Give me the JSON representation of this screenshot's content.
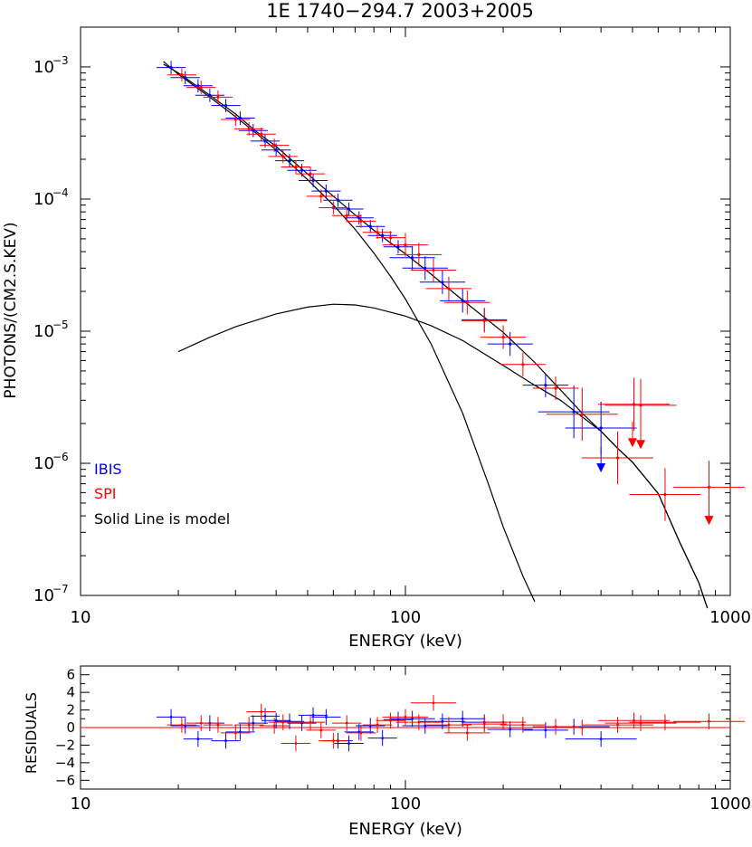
{
  "chart_data": [
    {
      "type": "scatter",
      "title": "1E 1740−294.7 2003+2005",
      "xlabel": "ENERGY (keV)",
      "ylabel": "PHOTONS/(CM2.S.KEV)",
      "xscale": "log",
      "yscale": "log",
      "xlim": [
        10,
        1000
      ],
      "ylim": [
        1e-07,
        0.002
      ],
      "x_ticks": [
        10,
        100,
        1000
      ],
      "x_tick_labels": [
        "10",
        "100",
        "1000"
      ],
      "y_ticks": [
        1e-07,
        1e-06,
        1e-05,
        0.0001,
        0.001
      ],
      "y_tick_labels": [
        "10",
        "10",
        "10",
        "10",
        "10"
      ],
      "y_tick_exponents": [
        "−7",
        "−6",
        "−5",
        "−4",
        "−3"
      ],
      "grid": false,
      "legend_placement": "bottom-left",
      "legend": [
        {
          "label": "IBIS",
          "color": "#0000ff"
        },
        {
          "label": "SPI",
          "color": "#ff0000"
        },
        {
          "label": "Solid Line is model",
          "color": "#000000"
        }
      ],
      "series": [
        {
          "name": "IBIS",
          "color": "#0000ff",
          "points": [
            [
              19,
              0.00099
            ],
            [
              21,
              0.00083
            ],
            [
              23,
              0.00072
            ],
            [
              25,
              0.00061
            ],
            [
              28,
              0.00051
            ],
            [
              31,
              0.00041
            ],
            [
              34,
              0.00033
            ],
            [
              37,
              0.000275
            ],
            [
              40,
              0.000235
            ],
            [
              44,
              0.000195
            ],
            [
              48,
              0.000165
            ],
            [
              52,
              0.000138
            ],
            [
              57,
              0.000115
            ],
            [
              62,
              9.8e-05
            ],
            [
              67,
              8.4e-05
            ],
            [
              72,
              7.2e-05
            ],
            [
              78,
              6.2e-05
            ],
            [
              85,
              5.3e-05
            ],
            [
              95,
              4.35e-05
            ],
            [
              105,
              3.6e-05
            ],
            [
              115,
              3e-05
            ],
            [
              130,
              2.35e-05
            ],
            [
              150,
              1.7e-05
            ],
            [
              175,
              1.22e-05
            ],
            [
              210,
              8e-06
            ],
            [
              270,
              3.9e-06
            ],
            [
              330,
              2.45e-06
            ],
            [
              400,
              1.85e-06
            ]
          ],
          "upper_limits": [
            [
              400,
              1e-06
            ]
          ]
        },
        {
          "name": "SPI",
          "color": "#ff0000",
          "points": [
            [
              20.5,
              0.00087
            ],
            [
              23.5,
              0.0007
            ],
            [
              26.5,
              0.00059
            ],
            [
              30,
              0.0004
            ],
            [
              33,
              0.00034
            ],
            [
              36,
              0.00031
            ],
            [
              39.5,
              0.000255
            ],
            [
              42,
              0.00021
            ],
            [
              46,
              0.000175
            ],
            [
              51,
              0.000155
            ],
            [
              55,
              0.000105
            ],
            [
              60,
              8.6e-05
            ],
            [
              66,
              7.5e-05
            ],
            [
              73,
              6.8e-05
            ],
            [
              82,
              5.6e-05
            ],
            [
              90,
              5.1e-05
            ],
            [
              100,
              4.5e-05
            ],
            [
              110,
              3.8e-05
            ],
            [
              122,
              2.9e-05
            ],
            [
              136,
              2.1e-05
            ],
            [
              155,
              1.65e-05
            ],
            [
              175,
              1.2e-05
            ],
            [
              200,
              9e-06
            ],
            [
              230,
              5.6e-06
            ],
            [
              290,
              3.7e-06
            ],
            [
              350,
              2.35e-06
            ],
            [
              450,
              1.1e-06
            ],
            [
              505,
              2.8e-06
            ],
            [
              530,
              2.75e-06
            ],
            [
              630,
              5.8e-07
            ],
            [
              860,
              6.6e-07
            ]
          ],
          "upper_limits": [
            [
              500,
              1.55e-06
            ],
            [
              530,
              1.5e-06
            ],
            [
              860,
              4e-07
            ]
          ]
        }
      ],
      "model_curves": [
        {
          "name": "total",
          "color": "#000000",
          "points": [
            [
              18,
              0.00105
            ],
            [
              20,
              0.0009
            ],
            [
              25,
              0.00061
            ],
            [
              30,
              0.00044
            ],
            [
              35,
              0.00032
            ],
            [
              40,
              0.00025
            ],
            [
              50,
              0.000155
            ],
            [
              60,
              0.000105
            ],
            [
              70,
              7.6e-05
            ],
            [
              80,
              5.8e-05
            ],
            [
              90,
              4.65e-05
            ],
            [
              100,
              3.85e-05
            ],
            [
              120,
              2.7e-05
            ],
            [
              150,
              1.72e-05
            ],
            [
              200,
              9.8e-06
            ],
            [
              250,
              5.8e-06
            ],
            [
              300,
              3.6e-06
            ],
            [
              350,
              2.4e-06
            ],
            [
              400,
              1.75e-06
            ],
            [
              450,
              1.3e-06
            ],
            [
              500,
              1.02e-06
            ],
            [
              600,
              5.9e-07
            ],
            [
              700,
              2.5e-07
            ],
            [
              800,
              1.25e-07
            ],
            [
              850,
              8e-08
            ]
          ]
        },
        {
          "name": "thermal component",
          "color": "#000000",
          "points": [
            [
              18,
              0.0011
            ],
            [
              20,
              0.00088
            ],
            [
              25,
              0.00059
            ],
            [
              30,
              0.00042
            ],
            [
              35,
              0.00031
            ],
            [
              40,
              0.000235
            ],
            [
              50,
              0.00014
            ],
            [
              60,
              9e-05
            ],
            [
              70,
              5.9e-05
            ],
            [
              80,
              3.9e-05
            ],
            [
              90,
              2.6e-05
            ],
            [
              100,
              1.75e-05
            ],
            [
              120,
              8e-06
            ],
            [
              150,
              2.4e-06
            ],
            [
              180,
              7e-07
            ],
            [
              200,
              3.3e-07
            ],
            [
              230,
              1.4e-07
            ],
            [
              250,
              9e-08
            ]
          ]
        },
        {
          "name": "comptonization component",
          "color": "#000000",
          "points": [
            [
              20,
              7e-06
            ],
            [
              25,
              9e-06
            ],
            [
              30,
              1.08e-05
            ],
            [
              40,
              1.35e-05
            ],
            [
              50,
              1.52e-05
            ],
            [
              60,
              1.6e-05
            ],
            [
              70,
              1.58e-05
            ],
            [
              80,
              1.5e-05
            ],
            [
              100,
              1.3e-05
            ],
            [
              120,
              1.1e-05
            ],
            [
              150,
              8.5e-06
            ],
            [
              200,
              5.5e-06
            ],
            [
              250,
              3.9e-06
            ],
            [
              300,
              3e-06
            ],
            [
              350,
              2.25e-06
            ],
            [
              400,
              1.75e-06
            ],
            [
              450,
              1.3e-06
            ],
            [
              500,
              1.02e-06
            ],
            [
              600,
              5.9e-07
            ],
            [
              700,
              2.5e-07
            ],
            [
              800,
              1.25e-07
            ],
            [
              850,
              8e-08
            ]
          ]
        }
      ]
    },
    {
      "type": "scatter",
      "xlabel": "ENERGY (keV)",
      "ylabel": "RESIDUALS",
      "xscale": "log",
      "xlim": [
        10,
        1000
      ],
      "ylim": [
        -7,
        7
      ],
      "x_ticks": [
        10,
        100,
        1000
      ],
      "x_tick_labels": [
        "10",
        "100",
        "1000"
      ],
      "y_ticks": [
        6,
        4,
        2,
        0,
        -2,
        -4,
        -6
      ],
      "y_tick_labels": [
        "6",
        "4",
        "2",
        "0",
        "−2",
        "−4",
        "−6"
      ],
      "zero_line_color": "#ff0000",
      "series": [
        {
          "name": "IBIS",
          "color": "#0000ff",
          "points": [
            [
              19,
              1.2
            ],
            [
              21,
              0.2
            ],
            [
              23,
              -1.3
            ],
            [
              25,
              0.5
            ],
            [
              28,
              -1.5
            ],
            [
              31,
              -0.5
            ],
            [
              34,
              0.5
            ],
            [
              37,
              1.3
            ],
            [
              40,
              0.8
            ],
            [
              44,
              0.7
            ],
            [
              48,
              0.5
            ],
            [
              52,
              1.4
            ],
            [
              57,
              1.2
            ],
            [
              62,
              -1.5
            ],
            [
              67,
              -1.8
            ],
            [
              72,
              -0.5
            ],
            [
              78,
              0.2
            ],
            [
              85,
              -1.2
            ],
            [
              95,
              0.9
            ],
            [
              105,
              1.0
            ],
            [
              115,
              0.2
            ],
            [
              130,
              0.7
            ],
            [
              150,
              1.0
            ],
            [
              175,
              0.6
            ],
            [
              210,
              -0.2
            ],
            [
              270,
              -0.3
            ],
            [
              330,
              0.1
            ],
            [
              400,
              -1.3
            ]
          ]
        },
        {
          "name": "SPI",
          "color": "#ff0000",
          "points": [
            [
              20.5,
              0.3
            ],
            [
              23.5,
              0.5
            ],
            [
              26.5,
              0.3
            ],
            [
              30,
              -0.6
            ],
            [
              33,
              0.3
            ],
            [
              36,
              1.8
            ],
            [
              39.5,
              0.2
            ],
            [
              42,
              0.6
            ],
            [
              46,
              -1.8
            ],
            [
              51,
              0.6
            ],
            [
              55,
              -0.3
            ],
            [
              60,
              -1.5
            ],
            [
              66,
              0.5
            ],
            [
              73,
              -0.6
            ],
            [
              82,
              0.3
            ],
            [
              90,
              0.8
            ],
            [
              100,
              1.2
            ],
            [
              110,
              0.6
            ],
            [
              122,
              2.8
            ],
            [
              136,
              0.3
            ],
            [
              155,
              -0.6
            ],
            [
              175,
              0.4
            ],
            [
              200,
              0.6
            ],
            [
              230,
              0.3
            ],
            [
              290,
              0.1
            ],
            [
              350,
              0.0
            ],
            [
              450,
              0.3
            ],
            [
              505,
              0.8
            ],
            [
              530,
              0.5
            ],
            [
              630,
              0.6
            ],
            [
              860,
              0.7
            ]
          ]
        }
      ]
    }
  ]
}
